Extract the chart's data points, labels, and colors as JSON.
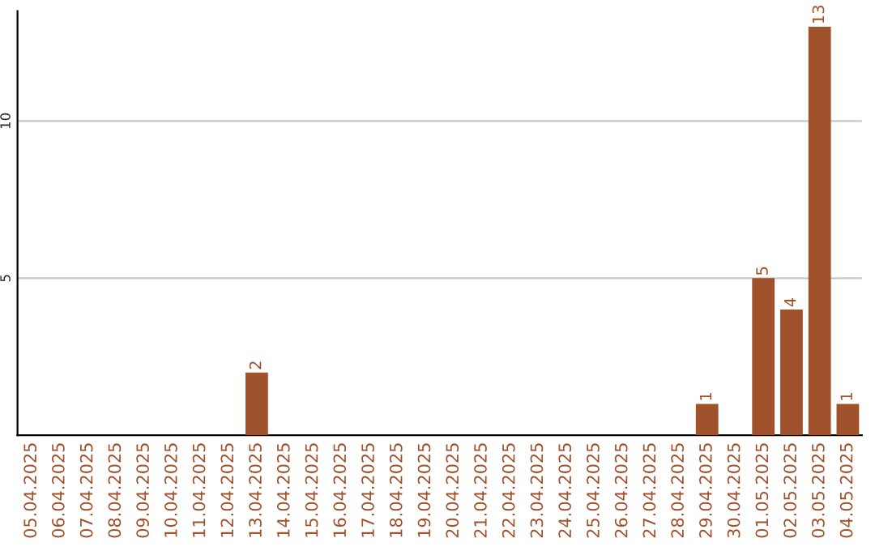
{
  "chart_data": {
    "type": "bar",
    "categories": [
      "05.04.2025",
      "06.04.2025",
      "07.04.2025",
      "08.04.2025",
      "09.04.2025",
      "10.04.2025",
      "11.04.2025",
      "12.04.2025",
      "13.04.2025",
      "14.04.2025",
      "15.04.2025",
      "16.04.2025",
      "17.04.2025",
      "18.04.2025",
      "19.04.2025",
      "20.04.2025",
      "21.04.2025",
      "22.04.2025",
      "23.04.2025",
      "24.04.2025",
      "25.04.2025",
      "26.04.2025",
      "27.04.2025",
      "28.04.2025",
      "29.04.2025",
      "30.04.2025",
      "01.05.2025",
      "02.05.2025",
      "03.05.2025",
      "04.05.2025"
    ],
    "values": [
      0,
      0,
      0,
      0,
      0,
      0,
      0,
      0,
      2,
      0,
      0,
      0,
      0,
      0,
      0,
      0,
      0,
      0,
      0,
      0,
      0,
      0,
      0,
      0,
      1,
      0,
      5,
      4,
      13,
      1
    ],
    "value_labels": [
      null,
      null,
      null,
      null,
      null,
      null,
      null,
      null,
      "2",
      null,
      null,
      null,
      null,
      null,
      null,
      null,
      null,
      null,
      null,
      null,
      null,
      null,
      null,
      null,
      "1",
      null,
      "5",
      "4",
      "13",
      "1"
    ],
    "color": "#a0522d",
    "ylim": [
      0,
      13.5
    ],
    "yticks": [
      5,
      10
    ],
    "grid": "y"
  }
}
